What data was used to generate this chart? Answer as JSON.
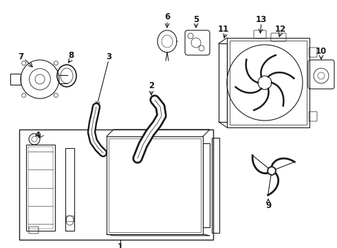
{
  "background_color": "#ffffff",
  "line_color": "#1a1a1a",
  "label_color": "#000000",
  "label_fontsize": 8.5,
  "fig_width": 4.9,
  "fig_height": 3.6,
  "dpi": 100
}
